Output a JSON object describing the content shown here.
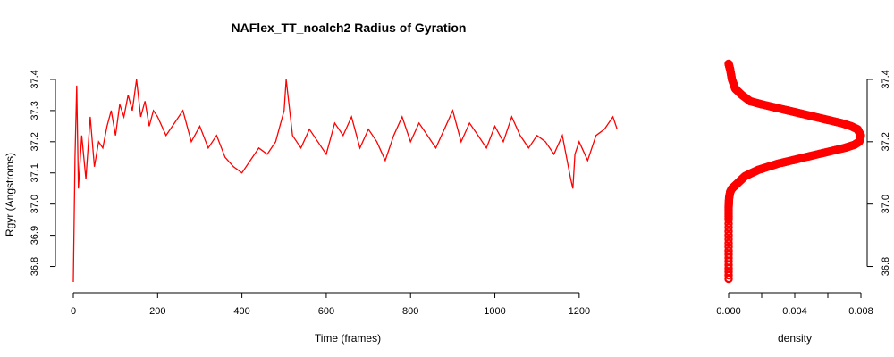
{
  "chart_data": [
    {
      "type": "line",
      "title": "NAFlex_TT_noalch2 Radius of Gyration",
      "xlabel": "Time (frames)",
      "ylabel": "Rgyr (Angstroms)",
      "xlim": [
        0,
        1300
      ],
      "ylim": [
        36.75,
        37.46
      ],
      "x_ticks": [
        0,
        200,
        400,
        600,
        800,
        1000,
        1200
      ],
      "x_tick_labels": [
        "0",
        "200",
        "400",
        "600",
        "800",
        "1000",
        "1200"
      ],
      "y_ticks": [
        36.8,
        36.9,
        37.0,
        37.1,
        37.2,
        37.3,
        37.4
      ],
      "y_tick_labels": [
        "36.8",
        "36.9",
        "37.0",
        "37.1",
        "37.2",
        "37.3",
        "37.4"
      ],
      "color": "#ff0000",
      "grid": false,
      "series": [
        {
          "x": [
            0,
            4,
            8,
            12,
            20,
            30,
            40,
            50,
            60,
            70,
            80,
            90,
            100,
            110,
            120,
            130,
            140,
            150,
            160,
            170,
            180,
            190,
            200,
            220,
            240,
            260,
            280,
            300,
            320,
            340,
            360,
            380,
            400,
            420,
            440,
            460,
            480,
            500,
            505,
            520,
            540,
            560,
            580,
            600,
            620,
            640,
            660,
            680,
            700,
            720,
            740,
            760,
            780,
            800,
            820,
            840,
            860,
            880,
            900,
            920,
            940,
            960,
            980,
            1000,
            1020,
            1040,
            1060,
            1080,
            1100,
            1120,
            1140,
            1160,
            1180,
            1185,
            1190,
            1200,
            1220,
            1240,
            1260,
            1280,
            1290
          ],
          "values": [
            36.75,
            37.15,
            37.38,
            37.05,
            37.22,
            37.08,
            37.28,
            37.12,
            37.2,
            37.18,
            37.25,
            37.3,
            37.22,
            37.32,
            37.28,
            37.35,
            37.3,
            37.4,
            37.28,
            37.33,
            37.25,
            37.3,
            37.28,
            37.22,
            37.26,
            37.3,
            37.2,
            37.25,
            37.18,
            37.22,
            37.15,
            37.12,
            37.1,
            37.14,
            37.18,
            37.16,
            37.2,
            37.3,
            37.4,
            37.22,
            37.18,
            37.24,
            37.2,
            37.16,
            37.26,
            37.22,
            37.28,
            37.18,
            37.24,
            37.2,
            37.14,
            37.22,
            37.28,
            37.2,
            37.26,
            37.22,
            37.18,
            37.24,
            37.3,
            37.2,
            37.26,
            37.22,
            37.18,
            37.25,
            37.2,
            37.28,
            37.22,
            37.18,
            37.22,
            37.2,
            37.16,
            37.22,
            37.08,
            37.05,
            37.16,
            37.2,
            37.14,
            37.22,
            37.24,
            37.28,
            37.24
          ]
        }
      ]
    },
    {
      "type": "scatter",
      "xlabel": "density",
      "ylabel": "",
      "xlim": [
        0,
        0.008
      ],
      "ylim": [
        36.75,
        37.46
      ],
      "x_ticks": [
        0,
        0.002,
        0.004,
        0.006,
        0.008
      ],
      "x_tick_labels": [
        "0.000",
        "",
        "0.004",
        "",
        "0.008"
      ],
      "y_ticks": [
        36.8,
        37.0,
        37.2,
        37.4
      ],
      "y_tick_labels": [
        "36.8",
        "37.0",
        "37.2",
        "37.4"
      ],
      "y_axis_side": "right",
      "color": "#ff0000",
      "series": [
        {
          "x": [
            0.0,
            0.0,
            0.0,
            0.0,
            3e-05,
            0.0001,
            0.0002,
            0.0004,
            0.0006,
            0.0008,
            0.001,
            0.0014,
            0.0018,
            0.0024,
            0.003,
            0.0038,
            0.0046,
            0.0054,
            0.0062,
            0.007,
            0.0076,
            0.0079,
            0.008,
            0.0078,
            0.0074,
            0.0068,
            0.006,
            0.0052,
            0.0044,
            0.0036,
            0.0028,
            0.002,
            0.0013,
            0.0008,
            0.0004,
            0.0002,
            0.0001,
            0.0
          ],
          "values": [
            36.76,
            36.85,
            36.95,
            36.99,
            37.02,
            37.04,
            37.05,
            37.06,
            37.07,
            37.08,
            37.09,
            37.1,
            37.11,
            37.12,
            37.13,
            37.14,
            37.15,
            37.16,
            37.17,
            37.18,
            37.19,
            37.2,
            37.22,
            37.24,
            37.25,
            37.26,
            37.27,
            37.28,
            37.29,
            37.3,
            37.31,
            37.32,
            37.33,
            37.35,
            37.37,
            37.4,
            37.43,
            37.45
          ]
        }
      ]
    }
  ]
}
